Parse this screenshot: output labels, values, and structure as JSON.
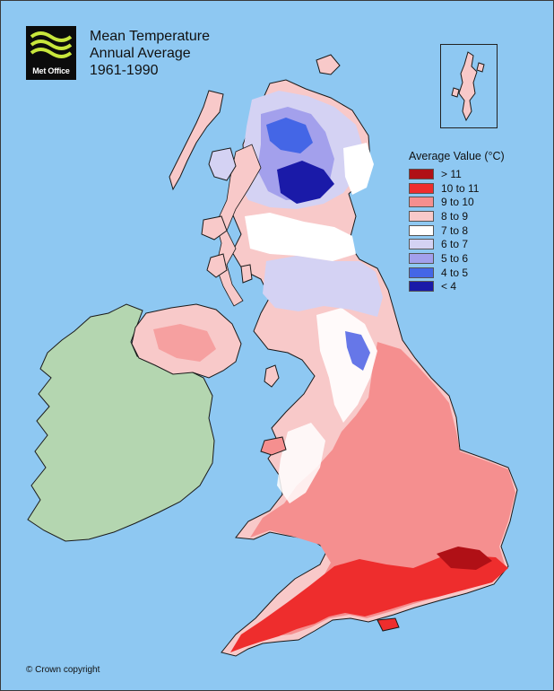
{
  "logo": {
    "text": "Met Office"
  },
  "title": {
    "line1": "Mean Temperature",
    "line2": "Annual Average",
    "line3": "1961-1990"
  },
  "legend": {
    "title": "Average Value (°C)",
    "items": [
      {
        "label": "> 11",
        "color": "#b01016"
      },
      {
        "label": "10 to 11",
        "color": "#ee2d2d"
      },
      {
        "label": "9 to 10",
        "color": "#f58f8f"
      },
      {
        "label": "8 to 9",
        "color": "#f8c9c9"
      },
      {
        "label": "7 to 8",
        "color": "#ffffff"
      },
      {
        "label": "6 to 7",
        "color": "#d4d2f3"
      },
      {
        "label": "5 to 6",
        "color": "#a3a0ec"
      },
      {
        "label": "4 to 5",
        "color": "#4466e6"
      },
      {
        "label": "< 4",
        "color": "#1a1aa8"
      }
    ]
  },
  "colors": {
    "sea": "#8ec8f2",
    "ireland": "#b4d6b0",
    "coastline": "#1a1a1a"
  },
  "copyright": "© Crown copyright"
}
